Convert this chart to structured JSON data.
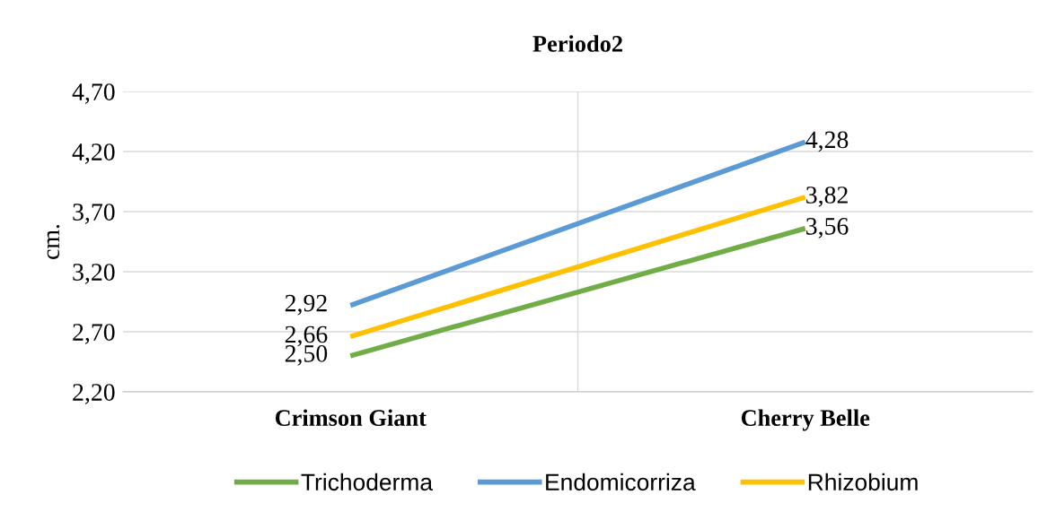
{
  "chart_data": {
    "type": "line",
    "title": "Periodo2",
    "ylabel": "cm.",
    "categories": [
      "Crimson Giant",
      "Cherry Belle"
    ],
    "series": [
      {
        "name": "Trichoderma",
        "color": "#70ad47",
        "values": [
          2.5,
          3.56
        ],
        "value_labels": [
          "2,50",
          "3,56"
        ]
      },
      {
        "name": "Endomicorriza",
        "color": "#5b9bd5",
        "values": [
          2.92,
          4.28
        ],
        "value_labels": [
          "2,92",
          "4,28"
        ]
      },
      {
        "name": "Rhizobium",
        "color": "#ffc000",
        "values": [
          2.66,
          3.82
        ],
        "value_labels": [
          "2,66",
          "3,82"
        ]
      }
    ],
    "ylim": [
      2.2,
      4.7
    ],
    "yticks": [
      {
        "value": 2.2,
        "label": "2,20"
      },
      {
        "value": 2.7,
        "label": "2,70"
      },
      {
        "value": 3.2,
        "label": "3,20"
      },
      {
        "value": 3.7,
        "label": "3,70"
      },
      {
        "value": 4.2,
        "label": "4,20"
      },
      {
        "value": 4.7,
        "label": "4,70"
      }
    ],
    "grid": true,
    "legend": "bottom",
    "marker": "none",
    "line_style": "solid"
  }
}
